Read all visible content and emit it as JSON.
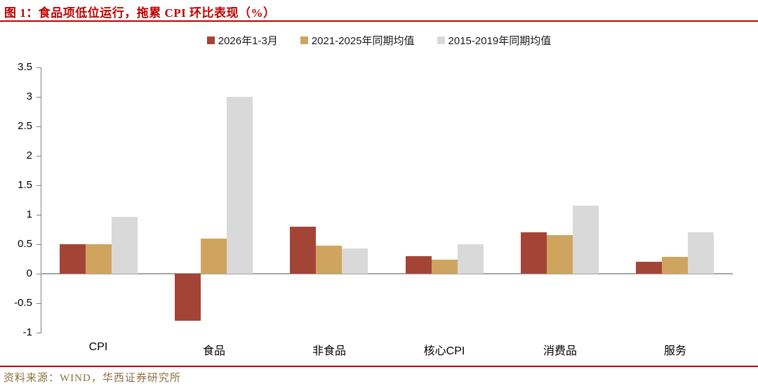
{
  "figure": {
    "title": "图 1：食品项低位运行，拖累 CPI 环比表现（%）",
    "source": "资料来源：WIND，华西证券研究所"
  },
  "colors": {
    "title_red": "#C00000",
    "rule_red": "#C00000",
    "source_text": "#8B7040",
    "axis_line": "#7f7f7f",
    "zero_line": "#a6a6a6"
  },
  "chart_data": {
    "type": "bar",
    "title": "图 1：食品项低位运行，拖累 CPI 环比表现（%）",
    "categories": [
      "CPI",
      "食品",
      "非食品",
      "核心CPI",
      "消费品",
      "服务"
    ],
    "series": [
      {
        "name": "2026年1-3月",
        "color": "#A44437",
        "values": [
          0.5,
          -0.8,
          0.8,
          0.3,
          0.7,
          0.2
        ]
      },
      {
        "name": "2021-2025年同期均值",
        "color": "#CFA45F",
        "values": [
          0.5,
          0.6,
          0.48,
          0.24,
          0.65,
          0.28
        ]
      },
      {
        "name": "2015-2019年同期均值",
        "color": "#D9D9D9",
        "values": [
          0.97,
          3.0,
          0.43,
          0.5,
          1.15,
          0.7
        ]
      }
    ],
    "ylim": [
      -1,
      3.5
    ],
    "ytick_labels": [
      "3.5",
      "3",
      "2.5",
      "2",
      "1.5",
      "1",
      "0.5",
      "0",
      "-0.5",
      "-1"
    ],
    "ytick_values": [
      3.5,
      3,
      2.5,
      2,
      1.5,
      1,
      0.5,
      0,
      -0.5,
      -1
    ],
    "grid": false,
    "legend_position": "top"
  }
}
